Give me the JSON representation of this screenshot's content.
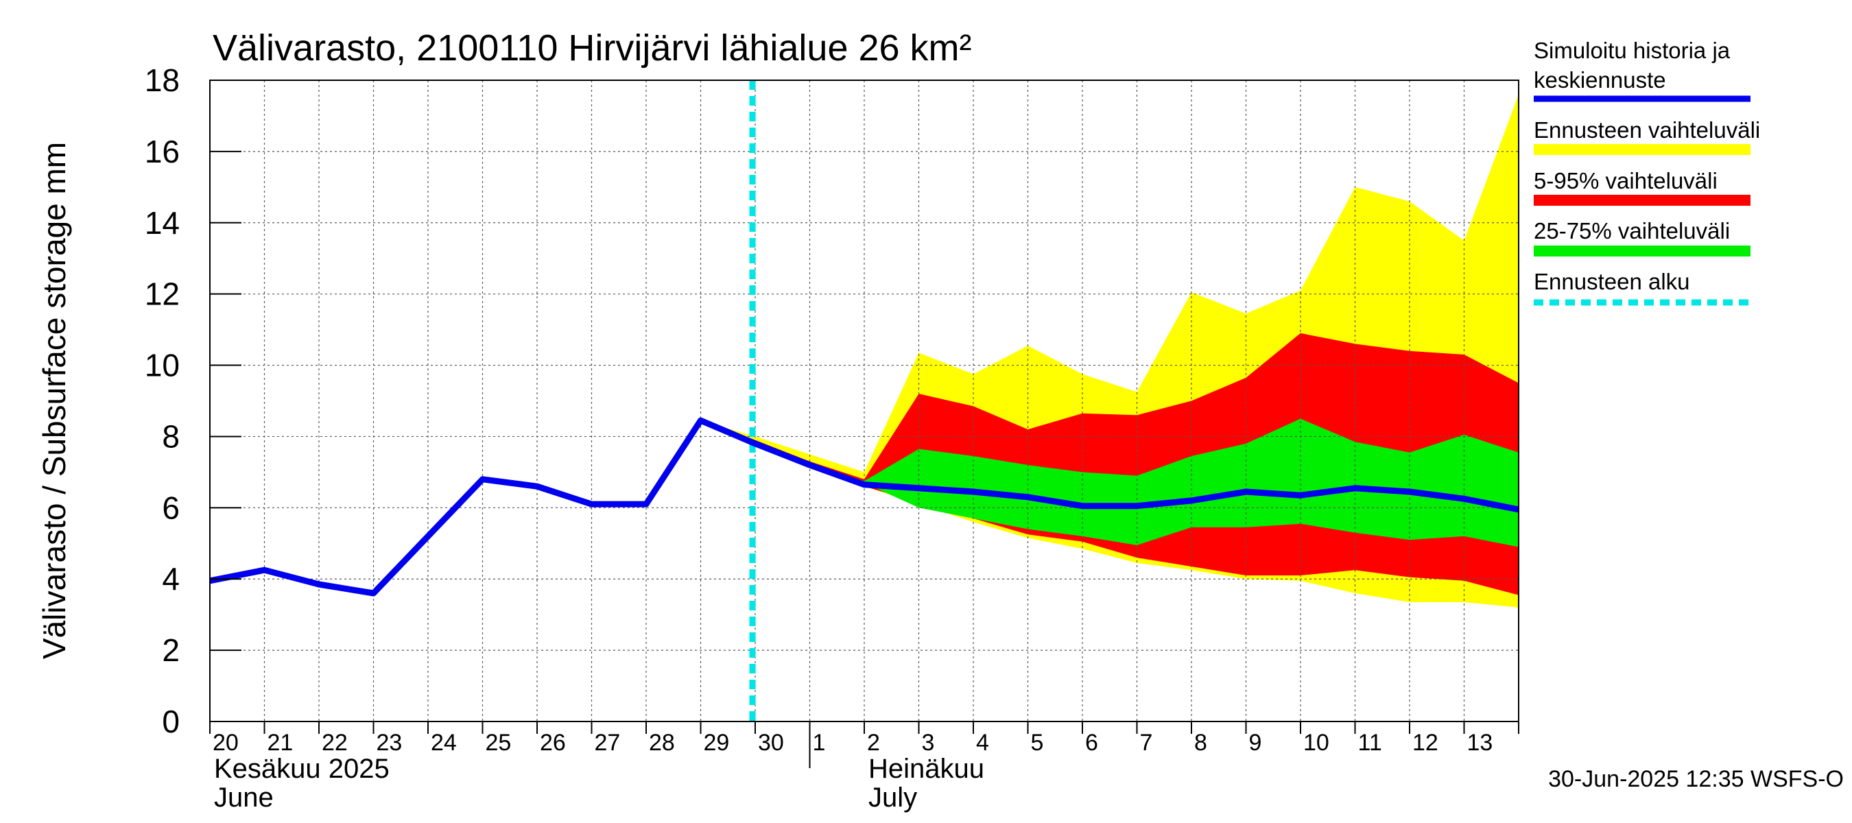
{
  "chart_data": {
    "type": "area",
    "title": "Välivarasto, 2100110 Hirvijärvi lähialue 26 km²",
    "ylabel": "Välivarasto / Subsurface storage  mm",
    "ylim": [
      0,
      18
    ],
    "yticks": [
      0,
      2,
      4,
      6,
      8,
      10,
      12,
      14,
      16,
      18
    ],
    "x_day_labels": [
      "20",
      "21",
      "22",
      "23",
      "24",
      "25",
      "26",
      "27",
      "28",
      "29",
      "30",
      "1",
      "2",
      "3",
      "4",
      "5",
      "6",
      "7",
      "8",
      "9",
      "10",
      "11",
      "12",
      "13"
    ],
    "month_labels": [
      {
        "line1": "Kesäkuu   2025",
        "line2": "June"
      },
      {
        "line1": "Heinäkuu",
        "line2": "July"
      }
    ],
    "forecast_start_day": 9.95,
    "grid": true,
    "legend_position": "right",
    "series": [
      {
        "name": "Simuloitu historia ja keskiennuste",
        "color": "#0000ee",
        "x": [
          0,
          1,
          2,
          3,
          4,
          5,
          6,
          7,
          8,
          9,
          10,
          11,
          12,
          13,
          14,
          15,
          16,
          17,
          18,
          19,
          20,
          21,
          22,
          23,
          24
        ],
        "y": [
          3.95,
          4.25,
          3.85,
          3.6,
          5.2,
          6.8,
          6.6,
          6.1,
          6.1,
          8.45,
          7.8,
          7.2,
          6.65,
          6.55,
          6.45,
          6.3,
          6.05,
          6.05,
          6.2,
          6.45,
          6.35,
          6.55,
          6.45,
          6.25,
          5.95
        ]
      },
      {
        "name": "Ennusteen vaihteluväli",
        "color": "#ffff00",
        "x": [
          9,
          10,
          11,
          12,
          13,
          14,
          15,
          16,
          17,
          18,
          19,
          20,
          21,
          22,
          23,
          24
        ],
        "upper": [
          8.45,
          8.0,
          7.5,
          7.0,
          10.35,
          9.75,
          10.55,
          9.75,
          9.25,
          12.05,
          11.45,
          12.1,
          15.0,
          14.6,
          13.5,
          17.6
        ],
        "lower": [
          8.45,
          7.75,
          7.1,
          6.6,
          6.1,
          5.6,
          5.15,
          4.85,
          4.45,
          4.25,
          4.0,
          3.95,
          3.6,
          3.35,
          3.35,
          3.2
        ]
      },
      {
        "name": "5-95% vaihteluväli",
        "color": "#ff0000",
        "x": [
          9,
          10,
          11,
          12,
          13,
          14,
          15,
          16,
          17,
          18,
          19,
          20,
          21,
          22,
          23,
          24
        ],
        "upper": [
          8.45,
          7.9,
          7.3,
          6.8,
          9.2,
          8.85,
          8.2,
          8.65,
          8.6,
          9.0,
          9.65,
          10.9,
          10.6,
          10.4,
          10.3,
          9.5
        ],
        "lower": [
          8.45,
          7.8,
          7.2,
          6.6,
          6.15,
          5.7,
          5.25,
          5.05,
          4.6,
          4.35,
          4.1,
          4.1,
          4.25,
          4.05,
          3.95,
          3.55
        ]
      },
      {
        "name": "25-75% vaihteluväli",
        "color": "#00ee00",
        "x": [
          9,
          10,
          11,
          12,
          13,
          14,
          15,
          16,
          17,
          18,
          19,
          20,
          21,
          22,
          23,
          24
        ],
        "upper": [
          8.45,
          7.85,
          7.25,
          6.75,
          7.65,
          7.45,
          7.2,
          7.0,
          6.9,
          7.45,
          7.8,
          8.5,
          7.85,
          7.55,
          8.05,
          7.55
        ],
        "lower": [
          8.45,
          7.8,
          7.2,
          6.7,
          6.0,
          5.7,
          5.4,
          5.2,
          4.95,
          5.45,
          5.45,
          5.55,
          5.3,
          5.1,
          5.2,
          4.9
        ]
      },
      {
        "name": "Ennusteen alku",
        "color": "#00e5e5"
      }
    ]
  },
  "footer": "30-Jun-2025 12:35 WSFS-O"
}
